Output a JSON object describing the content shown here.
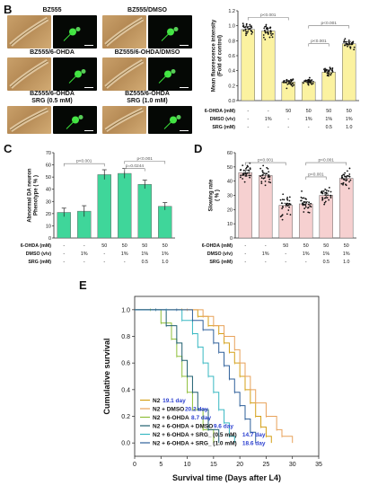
{
  "panel_labels": [
    "B",
    "C",
    "D",
    "E"
  ],
  "micrographs": [
    {
      "title": "BZ555"
    },
    {
      "title": "BZ555/DMSO"
    },
    {
      "title": "BZ555/6-OHDA"
    },
    {
      "title": "BZ555/6-OHDA/DMSO"
    },
    {
      "title": "BZ555/6-OHDA\nSRG (0.5 mM)"
    },
    {
      "title": "BZ555/6-OHDA\nSRG (1.0 mM)"
    }
  ],
  "treatment_table": {
    "row_labels": [
      "6-OHDA (mM)",
      "DMSO (v/v)",
      "SRG (mM)"
    ],
    "columns": [
      [
        "-",
        "-",
        "-"
      ],
      [
        "-",
        "1%",
        "-"
      ],
      [
        "50",
        "-",
        "-"
      ],
      [
        "50",
        "1%",
        "-"
      ],
      [
        "50",
        "1%",
        "0.5"
      ],
      [
        "50",
        "1%",
        "1.0"
      ]
    ]
  },
  "colors": {
    "fluor_bar": "#fbf2a0",
    "neuron_bar": "#3fd69a",
    "slowing_bar": "#f6d0d0",
    "bar_edge": "#666666",
    "sig_line": "#777777",
    "surv_N2": "#d4a017",
    "surv_DMSO": "#e8a25a",
    "surv_6OHDA": "#8fbf3a",
    "surv_6OHDA_DMSO": "#1f5f6f",
    "surv_SRG05": "#38b8c2",
    "surv_SRG10": "#2d5f9a",
    "day_label": "#2b3fd0"
  },
  "chart_data": [
    {
      "id": "B",
      "type": "bar",
      "ylabel": "Mean fluorescence intensity\n(Fold of control)",
      "ylim": [
        0.0,
        1.2
      ],
      "yticks": [
        "0.0",
        "0.2",
        "0.4",
        "0.6",
        "0.8",
        "1.0",
        "1.2"
      ],
      "values": [
        0.95,
        0.93,
        0.25,
        0.25,
        0.38,
        0.76
      ],
      "errors": [
        0.04,
        0.04,
        0.02,
        0.02,
        0.03,
        0.03
      ],
      "scatter_spread": [
        0.08,
        0.07,
        0.05,
        0.04,
        0.06,
        0.06
      ],
      "significance": [
        {
          "from": 0,
          "to": 2,
          "level": 1.11,
          "label": "p<0.001"
        },
        {
          "from": 3,
          "to": 5,
          "level": 1.0,
          "label": "p<0.001"
        },
        {
          "from": 3,
          "to": 4,
          "level": 0.76,
          "label": "p<0.001"
        }
      ]
    },
    {
      "id": "C",
      "type": "bar",
      "ylabel": "Abnormal DA neuron\nPhenotype ( % )",
      "ylim": [
        0,
        70
      ],
      "yticks": [
        "0",
        "10",
        "20",
        "30",
        "40",
        "50",
        "60",
        "70"
      ],
      "values": [
        21,
        22,
        52,
        53,
        44,
        26
      ],
      "errors": [
        3.5,
        4.5,
        4.0,
        4.0,
        3.5,
        3.0
      ],
      "significance": [
        {
          "from": 0,
          "to": 2,
          "level": 61,
          "label": "p<0.001"
        },
        {
          "from": 3,
          "to": 5,
          "level": 63,
          "label": "p<0.001"
        },
        {
          "from": 3,
          "to": 4,
          "level": 57,
          "label": "p=0.0244"
        }
      ]
    },
    {
      "id": "D",
      "type": "bar",
      "ylabel": "Slowing rate\n( % )",
      "ylim": [
        0,
        60
      ],
      "yticks": [
        "0",
        "10",
        "20",
        "30",
        "40",
        "50",
        "60"
      ],
      "values": [
        46,
        44,
        23,
        24,
        30,
        42
      ],
      "errors": [
        1.5,
        1.5,
        1.5,
        1.5,
        1.5,
        1.5
      ],
      "scatter_spread": [
        5,
        6,
        7,
        6,
        5,
        6
      ],
      "significance": [
        {
          "from": 0,
          "to": 2,
          "level": 53,
          "label": "p<0.001"
        },
        {
          "from": 3,
          "to": 5,
          "level": 53,
          "label": "p<0.001"
        },
        {
          "from": 3,
          "to": 4,
          "level": 43,
          "label": "p<0.001"
        }
      ]
    },
    {
      "id": "E",
      "type": "line",
      "ylabel": "Cumulative survival",
      "xlabel": "Survival time (Days after L4)",
      "xlim": [
        0,
        35
      ],
      "ylim": [
        -0.1,
        1.1
      ],
      "xticks": [
        "0",
        "5",
        "10",
        "15",
        "20",
        "25",
        "30",
        "35"
      ],
      "yticks": [
        "0.0",
        "0.2",
        "0.4",
        "0.6",
        "0.8",
        "1.0"
      ],
      "legend_position": "bottom-left",
      "series": [
        {
          "name": "N2",
          "mean_label": "19.1 day",
          "x": [
            0,
            9,
            12,
            14,
            16,
            17,
            18,
            19,
            20,
            21,
            22,
            23,
            24,
            25,
            26
          ],
          "y": [
            1.0,
            1.0,
            0.95,
            0.88,
            0.82,
            0.75,
            0.68,
            0.6,
            0.5,
            0.4,
            0.3,
            0.2,
            0.12,
            0.05,
            0.0
          ]
        },
        {
          "name": "N2 + DMSO",
          "mean_label": "20.2 day",
          "x": [
            0,
            10,
            13,
            15,
            17,
            19,
            20,
            21,
            22,
            23,
            25,
            27,
            28,
            30
          ],
          "y": [
            1.0,
            1.0,
            0.95,
            0.88,
            0.8,
            0.7,
            0.6,
            0.5,
            0.4,
            0.3,
            0.2,
            0.1,
            0.05,
            0.0
          ]
        },
        {
          "name": "N2 + 6-OHDA",
          "mean_label": "8.7 day",
          "x": [
            0,
            3,
            5,
            7,
            8,
            9,
            10,
            11,
            13,
            15
          ],
          "y": [
            1.0,
            1.0,
            0.9,
            0.78,
            0.65,
            0.5,
            0.38,
            0.25,
            0.1,
            0.0
          ]
        },
        {
          "name": "N2 + 6-OHDA + DMSO",
          "mean_label": "9.6 day",
          "x": [
            0,
            4,
            6,
            8,
            9,
            10,
            11,
            12,
            14,
            16
          ],
          "y": [
            1.0,
            1.0,
            0.88,
            0.75,
            0.62,
            0.5,
            0.38,
            0.25,
            0.1,
            0.0
          ]
        },
        {
          "name": "N2 + 6-OHDA + SRG_ (0.5 mM)",
          "mean_label": "14.7 day",
          "x": [
            0,
            6,
            9,
            11,
            12,
            13,
            14,
            15,
            16,
            17,
            18,
            19
          ],
          "y": [
            1.0,
            1.0,
            0.92,
            0.82,
            0.72,
            0.6,
            0.5,
            0.38,
            0.25,
            0.15,
            0.05,
            0.0
          ]
        },
        {
          "name": "N2 + 6-OHDA + SRG_ (1.0 mM)",
          "mean_label": "18.6 day",
          "x": [
            0,
            8,
            11,
            13,
            15,
            16,
            17,
            18,
            19,
            20,
            21,
            22,
            23
          ],
          "y": [
            1.0,
            1.0,
            0.92,
            0.85,
            0.75,
            0.68,
            0.58,
            0.48,
            0.38,
            0.28,
            0.18,
            0.08,
            0.0
          ]
        }
      ]
    }
  ]
}
